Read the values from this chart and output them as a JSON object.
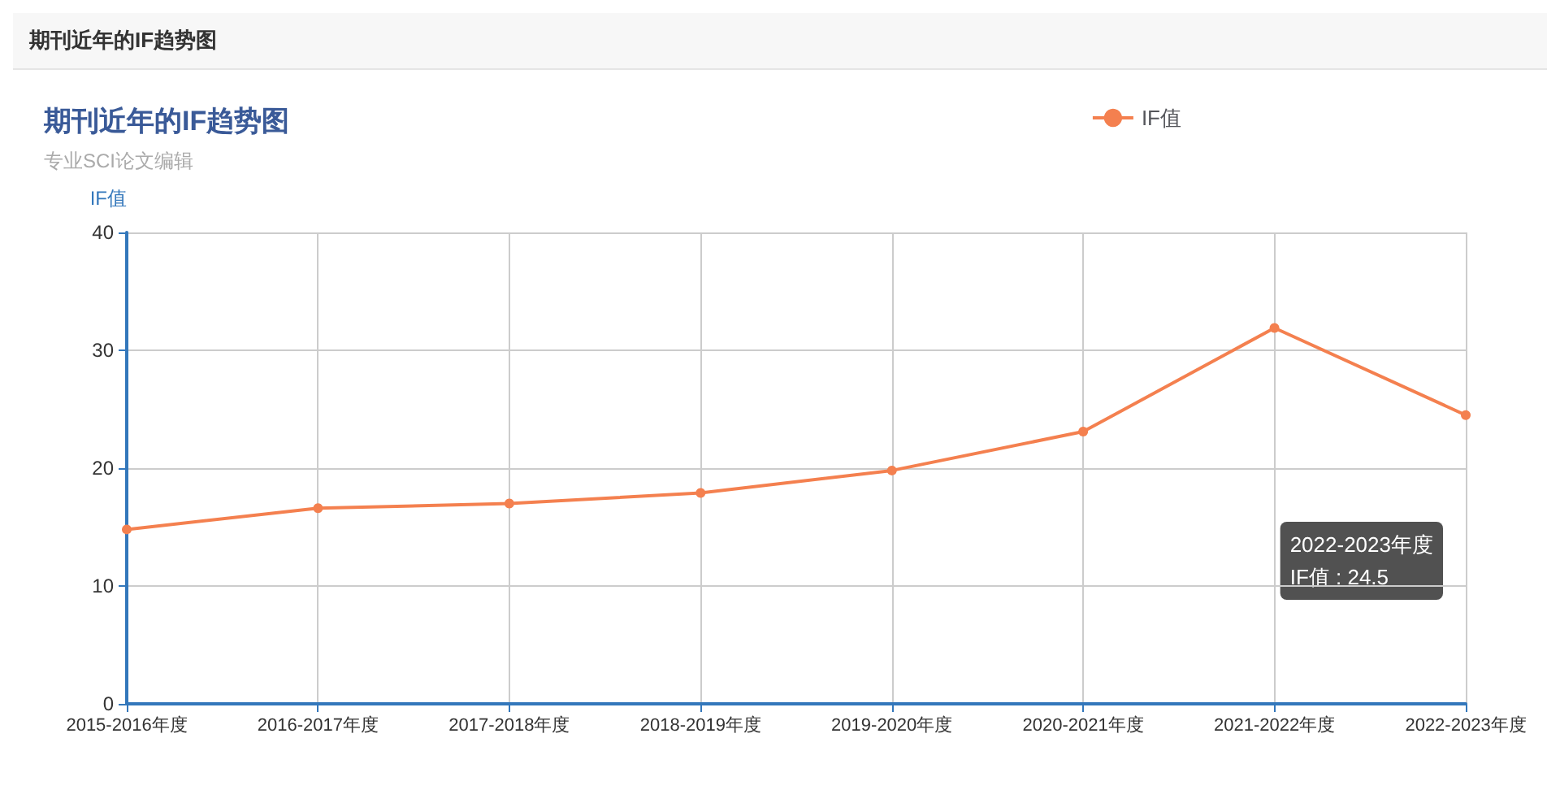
{
  "chart_data": {
    "type": "line",
    "title": "期刊近年的IF趋势图",
    "subtitle": "专业SCI论文编辑",
    "ylabel": "IF值",
    "categories": [
      "2015-2016年度",
      "2016-2017年度",
      "2017-2018年度",
      "2018-2019年度",
      "2019-2020年度",
      "2020-2021年度",
      "2021-2022年度",
      "2022-2023年度"
    ],
    "series": [
      {
        "name": "IF值",
        "color": "#f4804f",
        "values": [
          14.8,
          16.6,
          17.0,
          17.9,
          19.8,
          23.1,
          31.9,
          24.5
        ]
      }
    ],
    "ylim": [
      0,
      40
    ],
    "yticks": [
      0,
      10,
      20,
      30,
      40
    ],
    "grid": true,
    "legend": "top right",
    "marker": "circle",
    "line_style": "solid",
    "annotations": [
      "期刊近年的IF趋势图",
      "2022-2023年度\nIF值 : 24.5"
    ]
  }
}
